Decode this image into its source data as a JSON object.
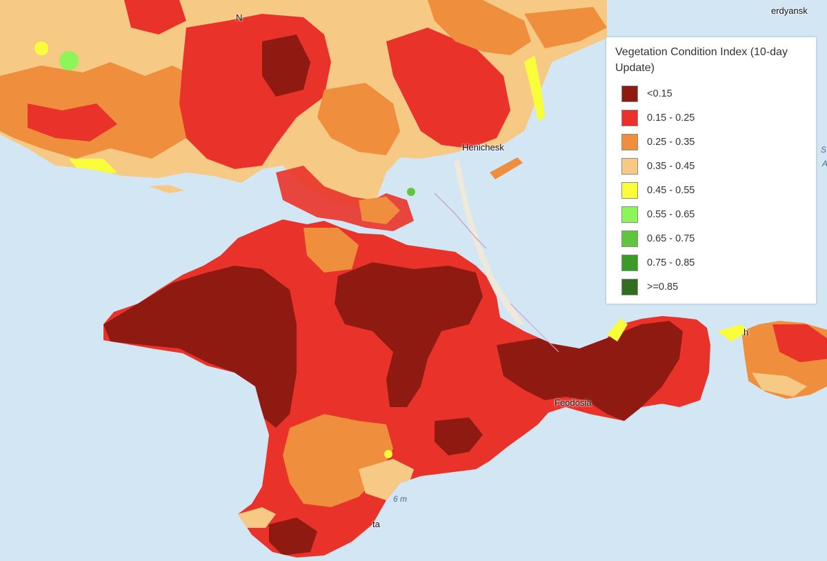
{
  "legend": {
    "title": "Vegetation Condition Index (10-day Update)",
    "items": [
      {
        "label": "<0.15",
        "color": "#8e1a12"
      },
      {
        "label": "0.15 - 0.25",
        "color": "#e9332a"
      },
      {
        "label": "0.25 - 0.35",
        "color": "#ef8e3d"
      },
      {
        "label": "0.35 - 0.45",
        "color": "#f6c985"
      },
      {
        "label": "0.45 - 0.55",
        "color": "#fafd3a"
      },
      {
        "label": "0.55 - 0.65",
        "color": "#8cf55a"
      },
      {
        "label": "0.65 - 0.75",
        "color": "#5ec63c"
      },
      {
        "label": "0.75 - 0.85",
        "color": "#3b9a28"
      },
      {
        "label": ">=0.85",
        "color": "#2f6d1f"
      }
    ]
  },
  "places": {
    "henichesk": "Henichesk",
    "feodosia": "Feodosia",
    "berdyansk": "erdyansk",
    "n_top": "N",
    "yalta_partial": "ta",
    "kerch_partial": "h",
    "right_edge_a": "S",
    "right_edge_b": "A"
  },
  "depth_label": "6 m",
  "colors": {
    "sea": "#d3e6f3",
    "land": "#efe9dc"
  }
}
